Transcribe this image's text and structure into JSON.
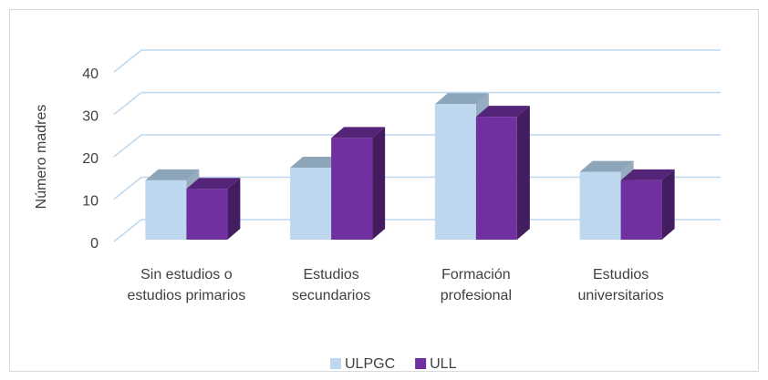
{
  "chart_data": {
    "type": "bar3d",
    "y_axis_label": "Número madres",
    "categories": [
      "Sin estudios o estudios primarios",
      "Estudios secundarios",
      "Formación profesional",
      "Estudios universitarios"
    ],
    "series": [
      {
        "name": "ULPGC",
        "color": "#bdd7ee",
        "values": [
          14,
          17,
          32,
          16
        ]
      },
      {
        "name": "ULL",
        "color": "#7030a0",
        "values": [
          12,
          24,
          29,
          14
        ]
      }
    ],
    "ylim": [
      0,
      40
    ],
    "yticks": [
      0,
      10,
      20,
      30,
      40
    ],
    "grid": true,
    "legend": "bottom"
  }
}
